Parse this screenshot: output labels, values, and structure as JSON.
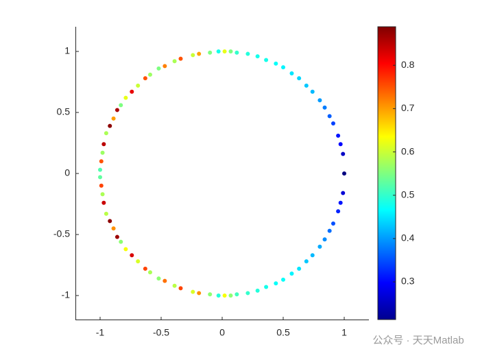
{
  "chart_data": {
    "type": "scatter",
    "x": [
      1.0,
      0.99,
      0.97,
      0.95,
      0.91,
      0.88,
      0.84,
      0.8,
      0.74,
      0.69,
      0.63,
      0.57,
      0.5,
      0.44,
      0.36,
      0.29,
      0.21,
      0.12,
      0.07,
      0.02,
      -0.03,
      -0.1,
      -0.19,
      -0.24,
      -0.34,
      -0.39,
      -0.47,
      -0.52,
      -0.59,
      -0.63,
      -0.69,
      -0.74,
      -0.79,
      -0.83,
      -0.86,
      -0.89,
      -0.92,
      -0.95,
      -0.97,
      -0.98,
      -0.99,
      -1.0,
      0.99,
      0.97,
      0.95,
      0.91,
      0.88,
      0.84,
      0.8,
      0.74,
      0.69,
      0.63,
      0.57,
      0.5,
      0.44,
      0.36,
      0.29,
      0.21,
      0.12,
      0.07,
      0.02,
      -0.03,
      -0.1,
      -0.19,
      -0.24,
      -0.34,
      -0.39,
      -0.47,
      -0.52,
      -0.59,
      -0.63,
      -0.69,
      -0.74,
      -0.79,
      -0.83,
      -0.86,
      -0.89,
      -0.92,
      -0.95,
      -0.97,
      -0.98,
      -0.99,
      -1.0
    ],
    "y": [
      0,
      0.16,
      0.24,
      0.31,
      0.41,
      0.47,
      0.54,
      0.6,
      0.67,
      0.72,
      0.78,
      0.82,
      0.87,
      0.9,
      0.93,
      0.96,
      0.98,
      0.99,
      1.0,
      1.0,
      1.0,
      0.99,
      0.98,
      0.97,
      0.94,
      0.92,
      0.88,
      0.86,
      0.81,
      0.78,
      0.72,
      0.67,
      0.62,
      0.56,
      0.52,
      0.45,
      0.39,
      0.33,
      0.24,
      0.17,
      0.1,
      0.03,
      -0.16,
      -0.24,
      -0.31,
      -0.41,
      -0.47,
      -0.54,
      -0.6,
      -0.67,
      -0.72,
      -0.78,
      -0.82,
      -0.87,
      -0.9,
      -0.93,
      -0.96,
      -0.98,
      -0.99,
      -1.0,
      -1.0,
      -1.0,
      -0.99,
      -0.98,
      -0.97,
      -0.94,
      -0.92,
      -0.88,
      -0.86,
      -0.81,
      -0.78,
      -0.72,
      -0.67,
      -0.62,
      -0.56,
      -0.52,
      -0.45,
      -0.39,
      -0.33,
      -0.24,
      -0.17,
      -0.1,
      -0.03
    ],
    "c": [
      0.21,
      0.26,
      0.3,
      0.31,
      0.34,
      0.36,
      0.38,
      0.4,
      0.42,
      0.43,
      0.44,
      0.45,
      0.46,
      0.47,
      0.48,
      0.48,
      0.49,
      0.5,
      0.55,
      0.62,
      0.48,
      0.55,
      0.7,
      0.6,
      0.75,
      0.58,
      0.72,
      0.55,
      0.57,
      0.75,
      0.6,
      0.82,
      0.62,
      0.55,
      0.86,
      0.7,
      0.88,
      0.58,
      0.85,
      0.57,
      0.75,
      0.52,
      0.27,
      0.31,
      0.32,
      0.35,
      0.37,
      0.39,
      0.41,
      0.42,
      0.43,
      0.45,
      0.46,
      0.47,
      0.47,
      0.48,
      0.49,
      0.5,
      0.51,
      0.56,
      0.63,
      0.49,
      0.56,
      0.71,
      0.61,
      0.76,
      0.59,
      0.73,
      0.56,
      0.58,
      0.76,
      0.61,
      0.83,
      0.63,
      0.56,
      0.87,
      0.71,
      0.88,
      0.59,
      0.84,
      0.58,
      0.76,
      0.53
    ],
    "colormap": "jet",
    "clim": [
      0.213,
      0.889
    ],
    "cticks": [
      0.3,
      0.4,
      0.5,
      0.6,
      0.7,
      0.8
    ],
    "xlim": [
      -1.2,
      1.2
    ],
    "ylim": [
      -1.2,
      1.2
    ],
    "xticks": [
      -1,
      -0.5,
      0,
      0.5,
      1
    ],
    "yticks": [
      -1,
      -0.5,
      0,
      0.5,
      1
    ],
    "watermark": "公众号 · 天天Matlab"
  }
}
